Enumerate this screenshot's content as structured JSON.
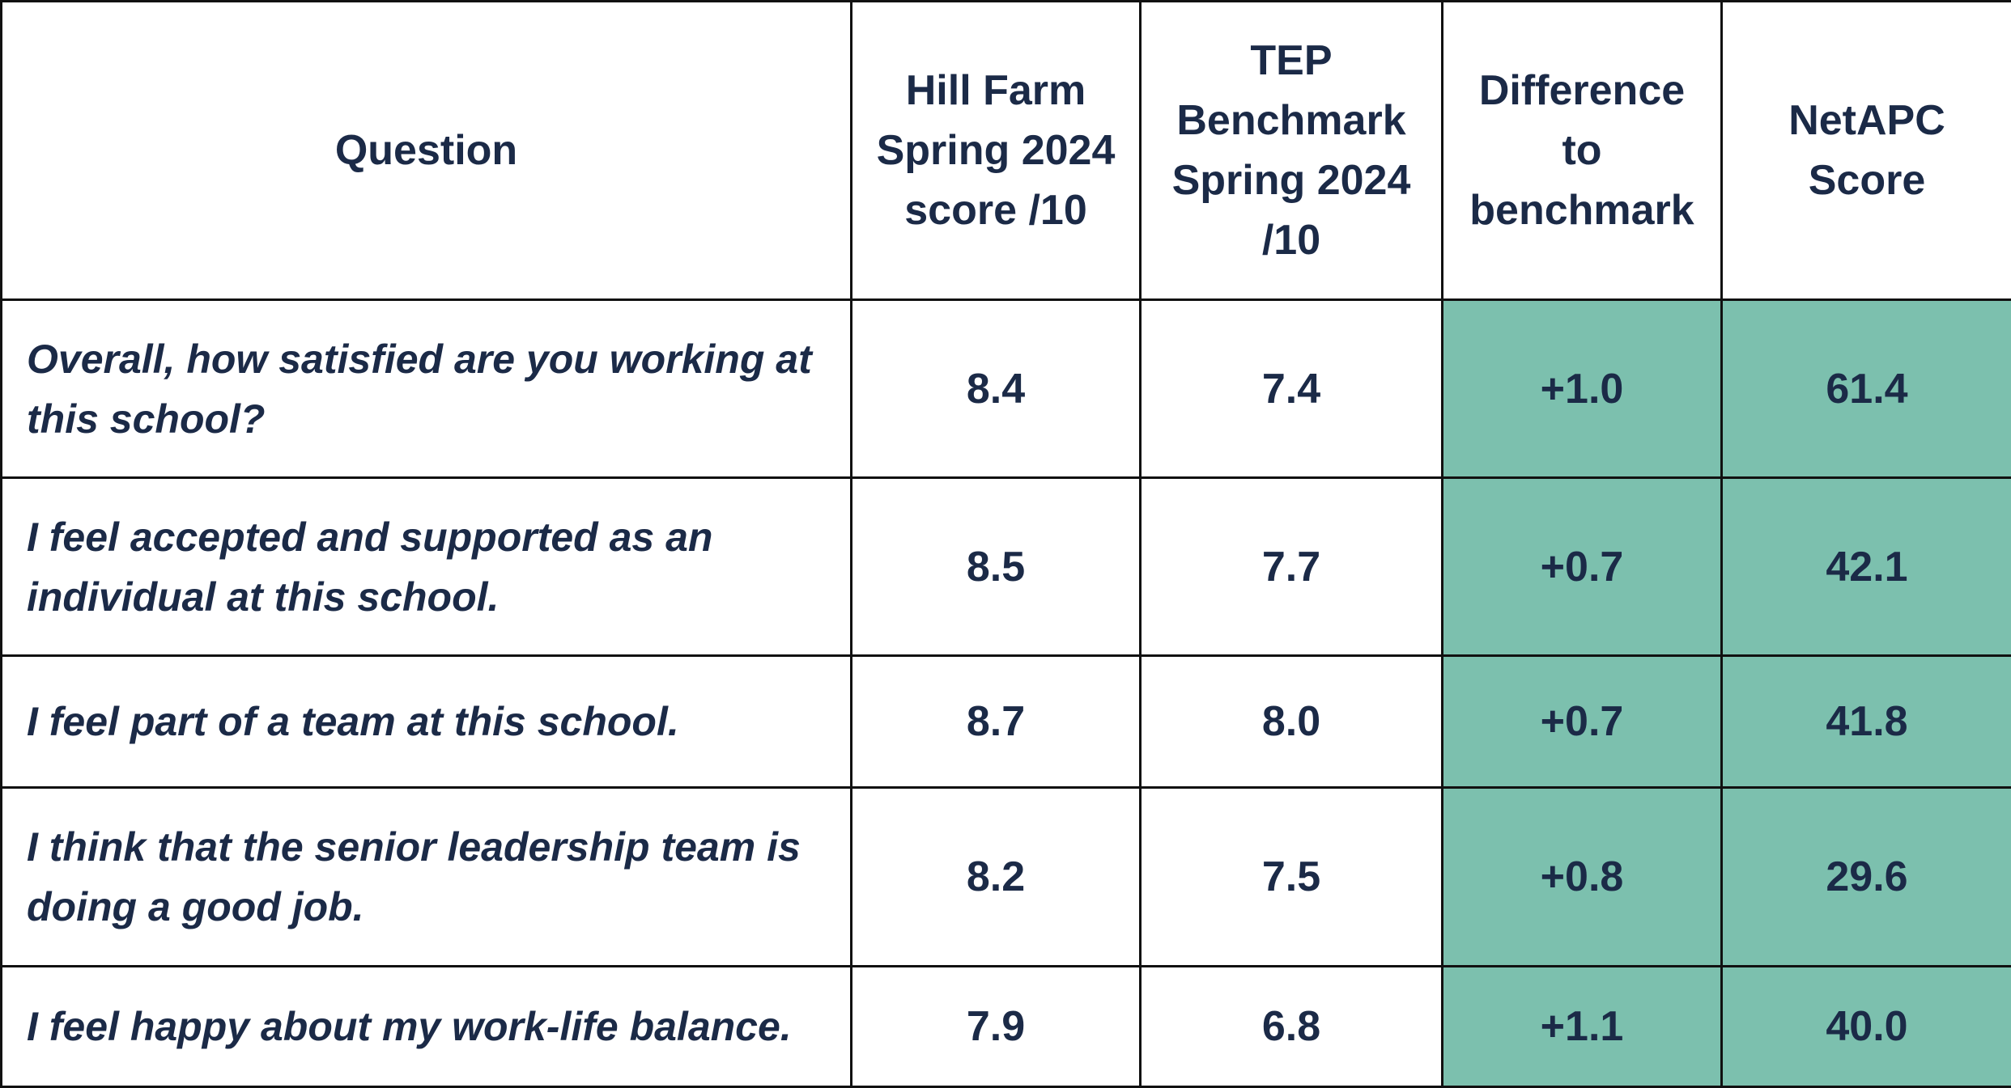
{
  "colors": {
    "highlight": "#7cc0ae",
    "text": "#1b2a47",
    "border": "#111111"
  },
  "header": {
    "question": "Question",
    "hill_farm_lines": [
      "Hill Farm",
      "Spring 2024",
      "score /10"
    ],
    "benchmark_lines": [
      "TEP",
      "Benchmark",
      "Spring 2024",
      "/10"
    ],
    "difference_lines": [
      "Difference",
      "to",
      "benchmark"
    ],
    "netapc_lines": [
      "NetAPC",
      "Score"
    ]
  },
  "rows": [
    {
      "question_lines": [
        "Overall, how satisfied are you working at",
        "this school?"
      ],
      "hill_farm": "8.4",
      "benchmark": "7.4",
      "difference": "+1.0",
      "netapc": "61.4"
    },
    {
      "question_lines": [
        "I feel accepted and supported as an",
        "individual at this school."
      ],
      "hill_farm": "8.5",
      "benchmark": "7.7",
      "difference": "+0.7",
      "netapc": "42.1"
    },
    {
      "question_lines": [
        "I feel part of a team at this school."
      ],
      "hill_farm": "8.7",
      "benchmark": "8.0",
      "difference": "+0.7",
      "netapc": "41.8"
    },
    {
      "question_lines": [
        "I think that the senior leadership team is",
        "doing a good job."
      ],
      "hill_farm": "8.2",
      "benchmark": "7.5",
      "difference": "+0.8",
      "netapc": "29.6"
    },
    {
      "question_lines": [
        "I feel happy about my work-life balance."
      ],
      "hill_farm": "7.9",
      "benchmark": "6.8",
      "difference": "+1.1",
      "netapc": "40.0"
    }
  ]
}
